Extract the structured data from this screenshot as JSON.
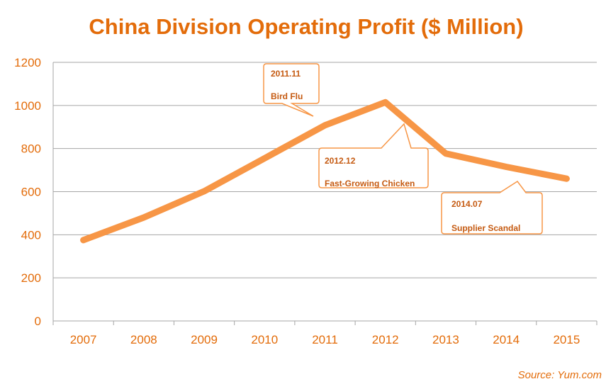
{
  "chart_data": {
    "type": "line",
    "title": "China Division Operating Profit ($ Million)",
    "xlabel": "",
    "ylabel": "",
    "categories": [
      "2007",
      "2008",
      "2009",
      "2010",
      "2011",
      "2012",
      "2013",
      "2014",
      "2015"
    ],
    "series": [
      {
        "values": [
          375,
          480,
          602,
          755,
          908,
          1015,
          777,
          715,
          660
        ]
      }
    ],
    "ylim": [
      0,
      1200
    ],
    "yticks": [
      "0",
      "200",
      "400",
      "600",
      "800",
      "1000",
      "1200"
    ],
    "grid": true,
    "line_color": "#f79646",
    "annotations": [
      {
        "id": "bird-flu",
        "date": "2011.11",
        "label": "Bird Flu",
        "points_to_year": "2011"
      },
      {
        "id": "fast-growing-chicken",
        "date": "2012.12",
        "label": "Fast-Growing Chicken",
        "points_to_year": "2012"
      },
      {
        "id": "supplier-scandal",
        "date": "2014.07",
        "label": "Supplier Scandal",
        "points_to_year": "2014"
      }
    ],
    "source": "Source: Yum.com"
  }
}
